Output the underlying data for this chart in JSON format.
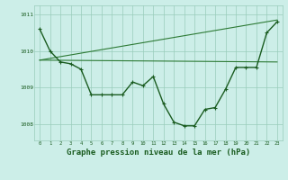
{
  "background_color": "#cceee8",
  "grid_color": "#99ccbb",
  "line_color_dark": "#1a5c20",
  "line_color_medium": "#2d7a35",
  "xlabel": "Graphe pression niveau de la mer (hPa)",
  "xlabel_fontsize": 6.5,
  "ylabel_ticks": [
    1008,
    1009,
    1010,
    1011
  ],
  "xlim": [
    -0.5,
    23.5
  ],
  "ylim": [
    1007.55,
    1011.25
  ],
  "series1_x": [
    0,
    1,
    2,
    3,
    4,
    5,
    6,
    7,
    8,
    9,
    10,
    11,
    12,
    13,
    14,
    15,
    16,
    17,
    18,
    19,
    20,
    21,
    22,
    23
  ],
  "series1_y": [
    1010.6,
    1010.0,
    1009.7,
    1009.65,
    1009.5,
    1008.8,
    1008.8,
    1008.8,
    1008.8,
    1009.15,
    1009.05,
    1009.3,
    1008.55,
    1008.05,
    1007.95,
    1007.95,
    1008.4,
    1008.45,
    1008.95,
    1009.55,
    1009.55,
    1009.55,
    1010.5,
    1010.8
  ],
  "series2_x": [
    0,
    23
  ],
  "series2_y": [
    1009.75,
    1009.7
  ],
  "series3_x": [
    0,
    23
  ],
  "series3_y": [
    1009.75,
    1010.85
  ]
}
